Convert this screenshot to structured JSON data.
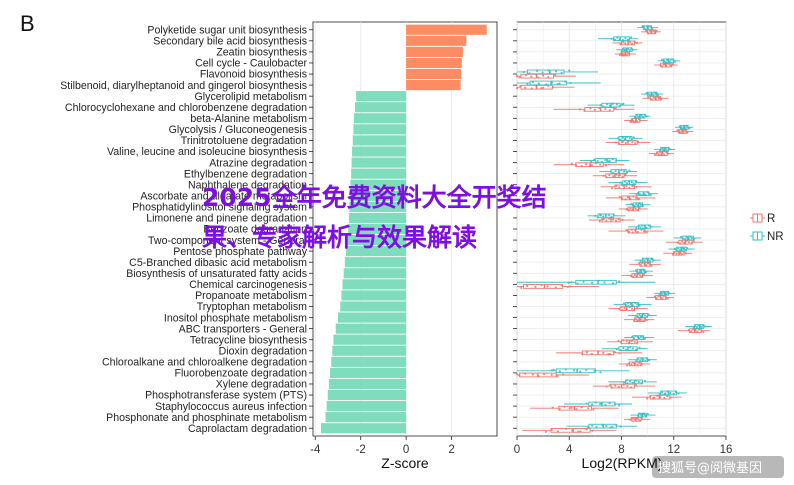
{
  "panel_label": "B",
  "watermark": {
    "line1": "2025全年免费资料大全开奖结",
    "line2": "果、专家解析与效果解读"
  },
  "footer_credit": "搜狐号@阅微基因",
  "colors": {
    "positive": "#fc8d62",
    "negative": "#7fdcbc",
    "R": "#f0756d",
    "NR": "#36bfc4",
    "grid": "#e8e8e8",
    "watermark": "#7d0fe0"
  },
  "chart_data": [
    {
      "type": "bar",
      "orientation": "horizontal",
      "xlabel": "Z-score",
      "ylabel": "",
      "xlim": [
        -4.1,
        4.0
      ],
      "xticks": [
        -4,
        -2,
        0,
        2
      ],
      "categories": [
        "Polyketide sugar unit biosynthesis",
        "Secondary bile acid biosynthesis",
        "Zeatin biosynthesis",
        "Cell cycle - Caulobacter",
        "Flavonoid biosynthesis",
        "Stilbenoid, diarylheptanoid and gingerol biosynthesis",
        "Glycerolipid metabolism",
        "Chlorocyclohexane and chlorobenzene degradation",
        "beta-Alanine metabolism",
        "Glycolysis / Gluconeogenesis",
        "Trinitrotoluene degradation",
        "Valine, leucine and isoleucine biosynthesis",
        "Atrazine degradation",
        "Ethylbenzene degradation",
        "Naphthalene degradation",
        "Ascorbate and aldarate metabolism",
        "Phosphatidylinositol signaling system",
        "Limonene and pinene degradation",
        "Benzoate degradation",
        "Two-component system - General",
        "Pentose phosphate pathway",
        "C5-Branched dibasic acid metabolism",
        "Biosynthesis of unsaturated fatty acids",
        "Chemical carcinogenesis",
        "Propanoate metabolism",
        "Tryptophan metabolism",
        "Inositol phosphate metabolism",
        "ABC transporters - General",
        "Tetracycline biosynthesis",
        "Dioxin degradation",
        "Chloroalkane and chloroalkene degradation",
        "Fluorobenzoate degradation",
        "Xylene degradation",
        "Phosphotransferase system (PTS)",
        "Staphylococcus aureus infection",
        "Phosphonate and phosphinate metabolism",
        "Caprolactam degradation"
      ],
      "values": [
        3.55,
        2.65,
        2.5,
        2.45,
        2.42,
        2.4,
        -2.2,
        -2.25,
        -2.3,
        -2.32,
        -2.35,
        -2.38,
        -2.4,
        -2.42,
        -2.45,
        -2.48,
        -2.5,
        -2.52,
        -2.55,
        -2.6,
        -2.65,
        -2.7,
        -2.75,
        -2.8,
        -2.85,
        -2.9,
        -3.0,
        -3.1,
        -3.2,
        -3.25,
        -3.3,
        -3.35,
        -3.4,
        -3.45,
        -3.5,
        -3.55,
        -3.75
      ]
    },
    {
      "type": "box",
      "orientation": "horizontal",
      "xlabel": "Log2(RPKM)",
      "xlim": [
        0,
        16
      ],
      "xticks": [
        0,
        4,
        8,
        12,
        16
      ],
      "legend": {
        "position": "right",
        "entries": [
          "R",
          "NR"
        ]
      },
      "series": [
        {
          "name": "R",
          "median": [
            10.3,
            8.5,
            8.3,
            11.4,
            1.5,
            1.5,
            10.6,
            6.4,
            9.1,
            12.7,
            8.5,
            11.1,
            5.6,
            7.5,
            8.2,
            8.6,
            8.9,
            7.2,
            9.1,
            12.9,
            12.4,
            9.8,
            9.2,
            2.1,
            11.0,
            8.4,
            9.4,
            13.6,
            8.6,
            6.2,
            9.0,
            1.6,
            8.0,
            10.9,
            4.4,
            9.1,
            4.3
          ],
          "q1": [
            10.0,
            8.0,
            8.0,
            11.0,
            0.3,
            0.3,
            10.2,
            5.2,
            8.8,
            12.4,
            7.8,
            10.7,
            4.5,
            6.8,
            7.5,
            8.0,
            8.5,
            6.5,
            8.5,
            12.4,
            12.0,
            9.4,
            8.8,
            0.5,
            10.6,
            7.9,
            9.0,
            13.2,
            8.0,
            5.0,
            8.6,
            0.2,
            7.2,
            10.2,
            3.2,
            8.8,
            2.6
          ],
          "q3": [
            10.6,
            9.0,
            8.6,
            11.8,
            2.8,
            2.7,
            11.0,
            7.4,
            9.4,
            13.0,
            9.2,
            11.5,
            6.6,
            8.2,
            9.0,
            9.2,
            9.3,
            7.9,
            9.8,
            13.4,
            12.8,
            10.2,
            9.6,
            3.5,
            11.4,
            9.0,
            9.8,
            14.1,
            9.2,
            7.4,
            9.5,
            3.0,
            9.0,
            11.7,
            5.7,
            9.5,
            5.6
          ],
          "min": [
            9.5,
            7.3,
            7.5,
            10.5,
            0.0,
            0.0,
            9.6,
            2.8,
            8.2,
            11.9,
            6.8,
            10.1,
            2.8,
            5.8,
            6.4,
            6.8,
            7.8,
            5.5,
            7.0,
            11.4,
            11.2,
            8.6,
            8.0,
            0.0,
            9.9,
            7.0,
            8.2,
            12.3,
            6.9,
            3.0,
            7.8,
            0.0,
            5.8,
            8.8,
            1.0,
            8.2,
            0.4
          ],
          "max": [
            11.0,
            9.6,
            9.1,
            12.3,
            4.5,
            4.4,
            11.6,
            9.0,
            10.0,
            13.5,
            10.2,
            12.0,
            8.2,
            9.2,
            10.3,
            10.6,
            10.0,
            9.0,
            11.2,
            14.2,
            13.4,
            11.0,
            10.4,
            6.3,
            12.0,
            10.0,
            10.5,
            14.8,
            10.4,
            9.6,
            10.2,
            5.5,
            10.6,
            12.6,
            7.8,
            10.2,
            7.6
          ]
        },
        {
          "name": "NR",
          "median": [
            10.0,
            7.9,
            8.4,
            11.6,
            2.5,
            2.6,
            10.3,
            7.2,
            9.4,
            12.8,
            8.3,
            11.3,
            6.9,
            7.8,
            8.6,
            9.7,
            9.3,
            6.8,
            9.8,
            13.1,
            12.6,
            10.0,
            9.5,
            6.2,
            11.3,
            8.8,
            9.6,
            14.0,
            9.3,
            8.5,
            9.6,
            4.6,
            9.0,
            11.6,
            6.5,
            9.6,
            6.6
          ],
          "q1": [
            9.7,
            7.4,
            8.1,
            11.2,
            0.8,
            1.0,
            10.0,
            6.5,
            9.1,
            12.5,
            7.8,
            11.0,
            6.0,
            7.2,
            8.1,
            9.3,
            8.9,
            6.2,
            9.3,
            12.7,
            12.2,
            9.6,
            9.2,
            4.5,
            11.0,
            8.3,
            9.2,
            13.6,
            8.9,
            7.8,
            9.2,
            3.0,
            8.3,
            11.0,
            5.5,
            9.3,
            5.5
          ],
          "q3": [
            10.3,
            8.6,
            8.8,
            12.0,
            3.6,
            3.8,
            10.7,
            7.9,
            9.8,
            13.1,
            8.8,
            11.6,
            7.6,
            8.4,
            9.1,
            10.1,
            9.6,
            7.4,
            10.2,
            13.5,
            13.0,
            10.4,
            9.8,
            7.6,
            11.6,
            9.3,
            10.0,
            14.3,
            9.7,
            9.2,
            10.0,
            6.0,
            9.6,
            12.2,
            7.5,
            9.9,
            7.6
          ],
          "min": [
            9.2,
            6.2,
            7.6,
            10.8,
            0.0,
            0.0,
            9.5,
            5.4,
            8.6,
            12.1,
            7.0,
            10.5,
            4.8,
            6.3,
            7.0,
            8.6,
            8.3,
            5.4,
            8.5,
            12.0,
            11.6,
            9.0,
            8.6,
            0.0,
            10.5,
            7.4,
            8.5,
            12.9,
            8.2,
            6.5,
            8.5,
            0.0,
            7.0,
            10.0,
            3.6,
            8.7,
            3.8
          ],
          "max": [
            10.8,
            9.3,
            9.2,
            12.5,
            6.2,
            6.4,
            11.2,
            9.0,
            10.2,
            13.5,
            9.6,
            12.1,
            8.6,
            9.2,
            10.0,
            10.8,
            10.2,
            8.3,
            11.0,
            14.1,
            13.6,
            11.0,
            10.4,
            10.6,
            12.1,
            10.3,
            10.7,
            14.9,
            10.5,
            10.0,
            10.7,
            8.6,
            10.7,
            13.0,
            8.8,
            10.6,
            9.2
          ]
        }
      ]
    }
  ]
}
